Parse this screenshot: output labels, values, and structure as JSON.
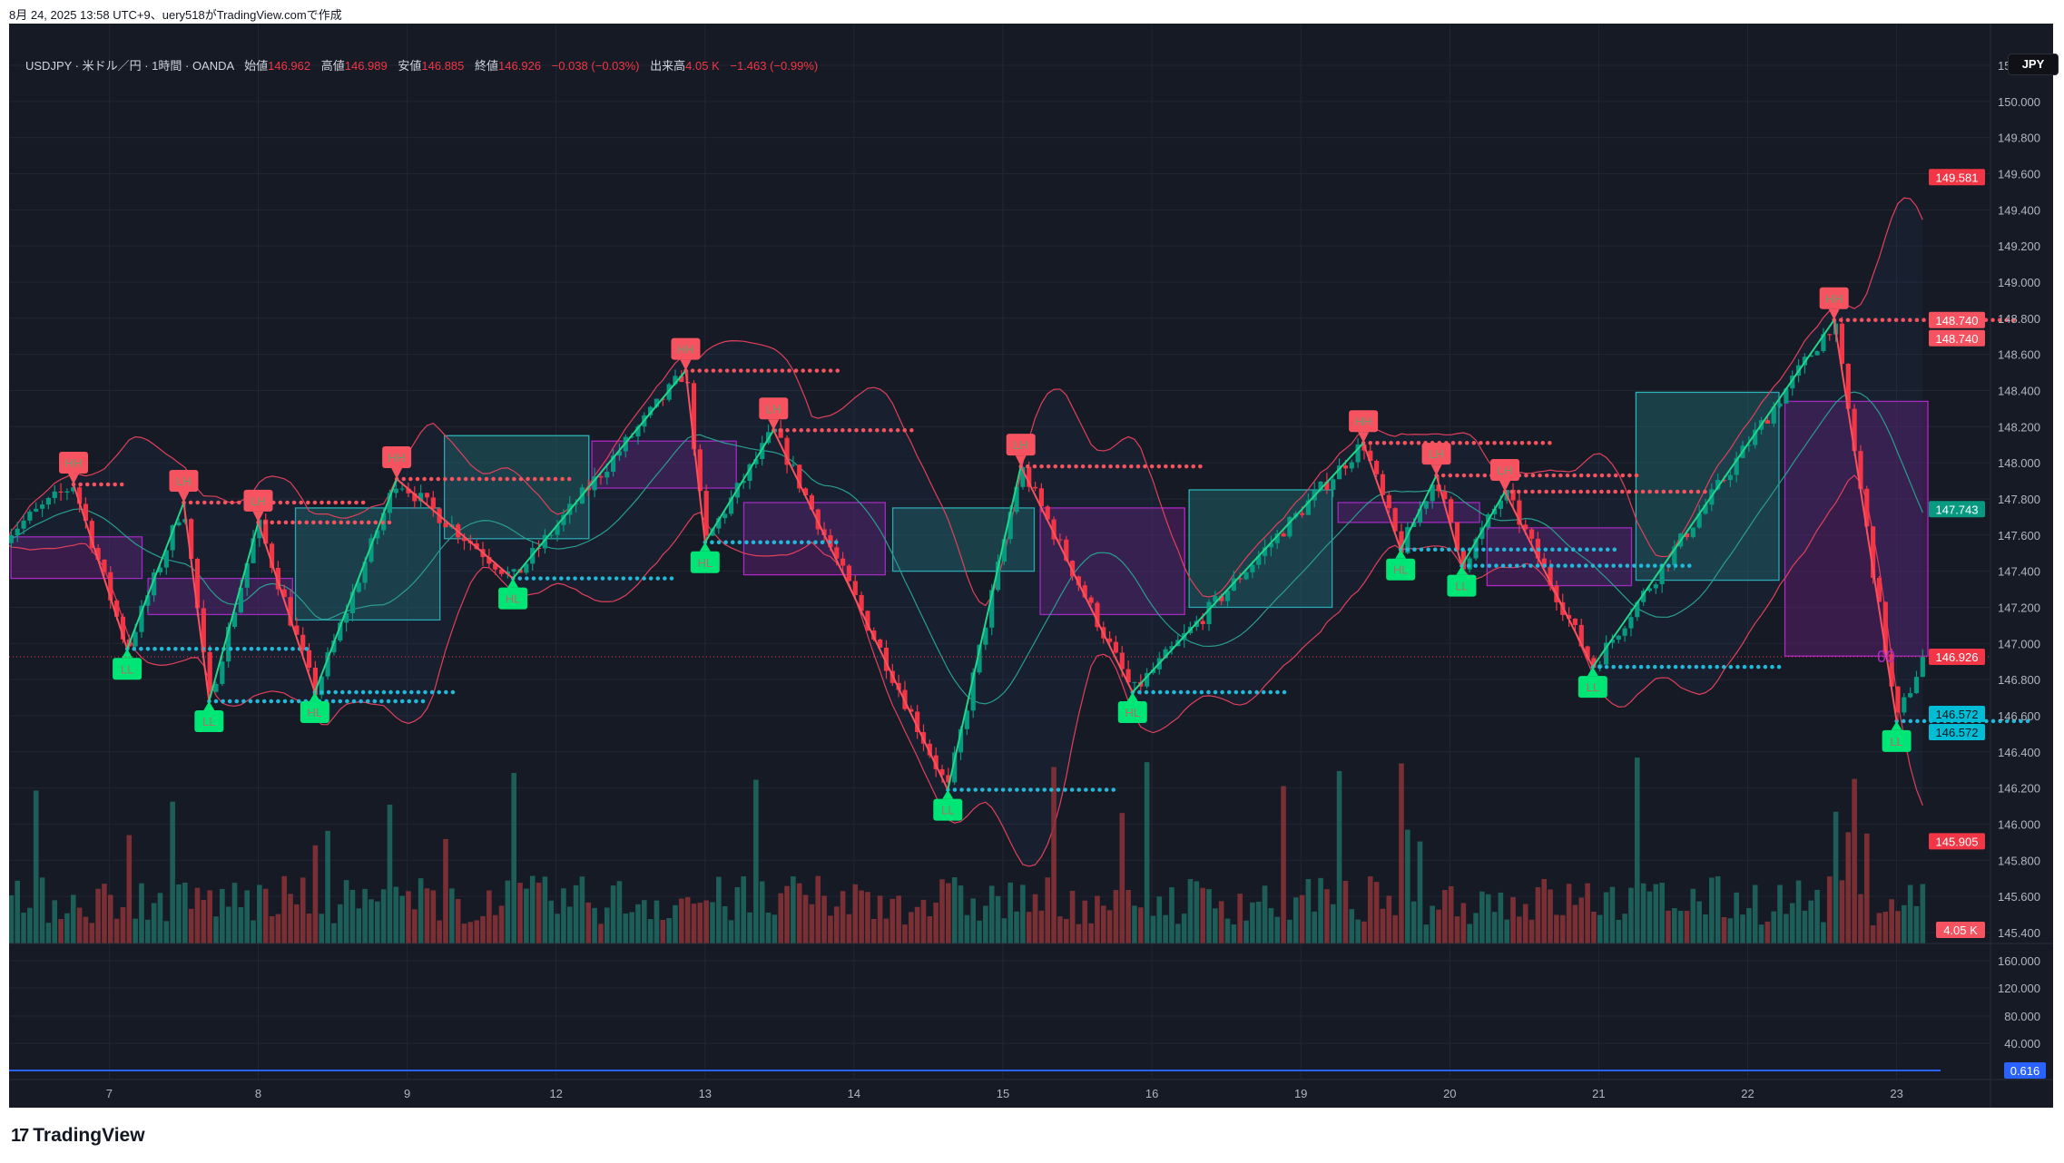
{
  "caption": "8月 24, 2025 13:58 UTC+9、uery518がTradingView.comで作成",
  "legend": {
    "symbol": "USDJPY · 米ドル／円 · 1時間 · OANDA",
    "open_label": "始値",
    "open": "146.962",
    "high_label": "高値",
    "high": "146.989",
    "low_label": "安値",
    "low": "146.885",
    "close_label": "終値",
    "close": "146.926",
    "change": "−0.038 (−0.03%)",
    "volume_label": "出来高",
    "volume": "4.05 K",
    "volume_change": "−1.463 (−0.99%)"
  },
  "currency_button": "JPY",
  "price_axis": [
    "150.200",
    "150.000",
    "149.800",
    "149.600",
    "149.400",
    "149.200",
    "149.000",
    "148.800",
    "148.600",
    "148.400",
    "148.200",
    "148.000",
    "147.800",
    "147.600",
    "147.400",
    "147.200",
    "147.000",
    "146.800",
    "146.600",
    "146.400",
    "146.200",
    "146.000",
    "145.800",
    "145.600",
    "145.400"
  ],
  "price_tags": [
    {
      "value": "149.581",
      "price": 149.581,
      "color": "#f23645",
      "text_color": "#ffffff"
    },
    {
      "value": "148.740",
      "price": 148.79,
      "color": "#f7525f",
      "text_color": "#ffffff"
    },
    {
      "value": "148.740",
      "price": 148.7,
      "color": "#f7525f",
      "text_color": "#ffffff"
    },
    {
      "value": "147.743",
      "price": 147.743,
      "color": "#089981",
      "text_color": "#ffffff"
    },
    {
      "value": "146.926",
      "price": 146.926,
      "color": "#f23645",
      "text_color": "#ffffff"
    },
    {
      "value": "146.572",
      "price": 146.61,
      "color": "#00bcd4",
      "text_color": "#131722"
    },
    {
      "value": "146.572",
      "price": 146.53,
      "color": "#00bcd4",
      "text_color": "#131722"
    },
    {
      "value": "145.905",
      "price": 145.905,
      "color": "#f23645",
      "text_color": "#ffffff"
    }
  ],
  "volume_tag": {
    "value": "4.05 K",
    "color": "#f7525f"
  },
  "osc_axis": [
    "160.000",
    "120.000",
    "80.000",
    "40.000"
  ],
  "osc_value": {
    "value": "0.616",
    "color": "#2962ff"
  },
  "time_axis": [
    "7",
    "8",
    "9",
    "12",
    "13",
    "14",
    "15",
    "16",
    "19",
    "20",
    "21",
    "22",
    "23"
  ],
  "overlay_text": "00",
  "brand": "TradingView",
  "colors": {
    "background": "#161a25",
    "up": "#089981",
    "down": "#f23645",
    "label_high": "#f7525f",
    "label_low": "#00e676",
    "zigzag_up": "#22d68a",
    "zigzag_down": "#f7525f",
    "resistance_dots": "#f7525f",
    "support_dots": "#22b8d8",
    "zone_bull": "#1f5e63",
    "zone_bear": "#5a1f6b",
    "bollinger": "#e0405a",
    "basis": "#2a9d8f"
  },
  "chart_data": {
    "type": "candlestick",
    "symbol": "USDJPY",
    "timeframe": "1時間",
    "ylim": [
      145.4,
      150.2
    ],
    "time_unit": "index of time-axis tick labels (0 = '7', 12 = '23')",
    "last_close": 146.926,
    "start_price": 147.6,
    "swings": [
      {
        "label": "HH",
        "t": -0.24,
        "price": 147.88
      },
      {
        "label": "LL",
        "t": 0.12,
        "price": 146.97
      },
      {
        "label": "LH",
        "t": 0.5,
        "price": 147.78
      },
      {
        "label": "LL",
        "t": 0.67,
        "price": 146.68
      },
      {
        "label": "LH",
        "t": 1.0,
        "price": 147.67
      },
      {
        "label": "HL",
        "t": 1.38,
        "price": 146.73
      },
      {
        "label": "HH",
        "t": 1.93,
        "price": 147.91
      },
      {
        "label": "HL",
        "t": 2.71,
        "price": 147.36
      },
      {
        "label": "HH",
        "t": 3.87,
        "price": 148.51
      },
      {
        "label": "HL",
        "t": 4.0,
        "price": 147.56
      },
      {
        "label": "LH",
        "t": 4.46,
        "price": 148.18
      },
      {
        "label": "LL",
        "t": 5.63,
        "price": 146.19
      },
      {
        "label": "LH",
        "t": 6.12,
        "price": 147.98
      },
      {
        "label": "HL",
        "t": 6.87,
        "price": 146.73
      },
      {
        "label": "HH",
        "t": 8.42,
        "price": 148.11
      },
      {
        "label": "HL",
        "t": 8.67,
        "price": 147.52
      },
      {
        "label": "LH",
        "t": 8.91,
        "price": 147.93
      },
      {
        "label": "LL",
        "t": 9.08,
        "price": 147.43
      },
      {
        "label": "LH",
        "t": 9.37,
        "price": 147.84
      },
      {
        "label": "LL",
        "t": 9.96,
        "price": 146.87
      },
      {
        "label": "HH",
        "t": 11.58,
        "price": 148.79
      },
      {
        "label": "LL",
        "t": 12.0,
        "price": 146.57
      }
    ],
    "zones": [
      {
        "kind": "bear",
        "t0": -0.66,
        "t1": 0.22,
        "top": 147.59,
        "bottom": 147.36
      },
      {
        "kind": "bear",
        "t0": 0.26,
        "t1": 1.23,
        "top": 147.36,
        "bottom": 147.16
      },
      {
        "kind": "bull",
        "t0": 1.25,
        "t1": 2.22,
        "top": 147.75,
        "bottom": 147.13
      },
      {
        "kind": "bull",
        "t0": 2.25,
        "t1": 3.22,
        "top": 148.15,
        "bottom": 147.58
      },
      {
        "kind": "bear",
        "t0": 3.24,
        "t1": 4.21,
        "top": 148.12,
        "bottom": 147.86
      },
      {
        "kind": "bear",
        "t0": 4.26,
        "t1": 5.21,
        "top": 147.78,
        "bottom": 147.38
      },
      {
        "kind": "bull",
        "t0": 5.26,
        "t1": 6.21,
        "top": 147.75,
        "bottom": 147.4
      },
      {
        "kind": "bear",
        "t0": 6.25,
        "t1": 7.22,
        "top": 147.75,
        "bottom": 147.16
      },
      {
        "kind": "bull",
        "t0": 7.25,
        "t1": 8.21,
        "top": 147.85,
        "bottom": 147.2
      },
      {
        "kind": "bear",
        "t0": 8.25,
        "t1": 9.2,
        "top": 147.78,
        "bottom": 147.67
      },
      {
        "kind": "bear",
        "t0": 9.25,
        "t1": 10.22,
        "top": 147.64,
        "bottom": 147.32
      },
      {
        "kind": "bull",
        "t0": 10.25,
        "t1": 11.21,
        "top": 148.39,
        "bottom": 147.35
      },
      {
        "kind": "bear",
        "t0": 11.25,
        "t1": 12.21,
        "top": 148.34,
        "bottom": 146.93
      }
    ]
  }
}
